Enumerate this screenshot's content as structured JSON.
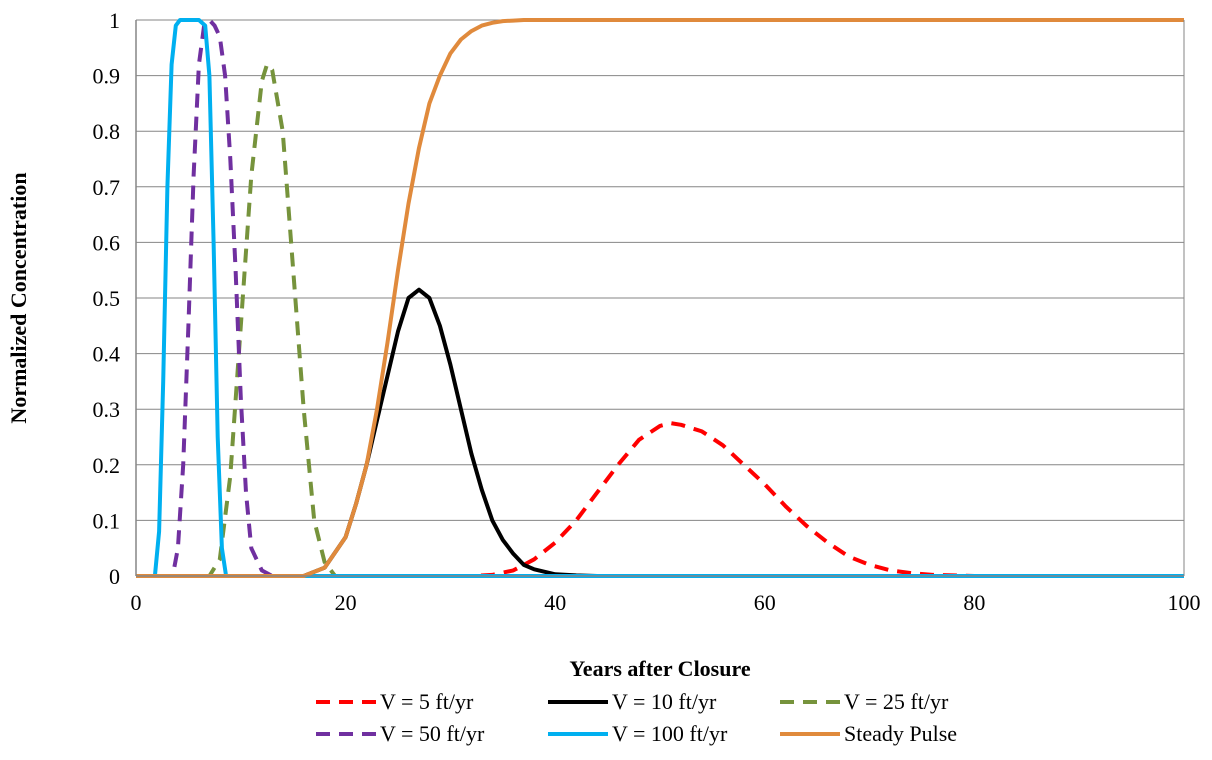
{
  "chart_data": {
    "type": "line",
    "title": "",
    "xlabel": "Years after Closure",
    "ylabel": "Normalized Concentration",
    "xlim": [
      0,
      100
    ],
    "ylim": [
      0,
      1
    ],
    "xticks": [
      0,
      20,
      40,
      60,
      80,
      100
    ],
    "xtick_labels": [
      "0",
      "20",
      "40",
      "60",
      "80",
      "100"
    ],
    "yticks": [
      0,
      0.1,
      0.2,
      0.3,
      0.4,
      0.5,
      0.6,
      0.7,
      0.8,
      0.9,
      1
    ],
    "ytick_labels": [
      "0",
      "0.1",
      "0.2",
      "0.3",
      "0.4",
      "0.5",
      "0.6",
      "0.7",
      "0.8",
      "0.9",
      "1"
    ],
    "grid": "horizontal",
    "legend_position": "bottom",
    "series": [
      {
        "name": "V = 5 ft/yr",
        "color": "#ff0000",
        "dash": true,
        "x": [
          0,
          32,
          34,
          36,
          38,
          40,
          42,
          44,
          46,
          48,
          50,
          51,
          52,
          54,
          56,
          58,
          60,
          62,
          64,
          66,
          68,
          70,
          72,
          74,
          76,
          78,
          80,
          100
        ],
        "y": [
          0,
          0,
          0.002,
          0.01,
          0.03,
          0.06,
          0.1,
          0.15,
          0.2,
          0.245,
          0.27,
          0.275,
          0.272,
          0.26,
          0.235,
          0.2,
          0.165,
          0.125,
          0.09,
          0.06,
          0.035,
          0.02,
          0.01,
          0.005,
          0.002,
          0.001,
          0,
          0
        ]
      },
      {
        "name": "V = 10 ft/yr",
        "color": "#000000",
        "dash": false,
        "x": [
          0,
          16,
          18,
          20,
          21,
          22,
          23,
          24,
          25,
          26,
          27,
          28,
          29,
          30,
          31,
          32,
          33,
          34,
          35,
          36,
          37,
          38,
          40,
          42,
          44,
          100
        ],
        "y": [
          0,
          0,
          0.015,
          0.07,
          0.13,
          0.2,
          0.28,
          0.36,
          0.44,
          0.5,
          0.515,
          0.5,
          0.45,
          0.38,
          0.3,
          0.22,
          0.155,
          0.1,
          0.065,
          0.04,
          0.02,
          0.012,
          0.003,
          0.001,
          0,
          0
        ]
      },
      {
        "name": "V = 25 ft/yr",
        "color": "#76933c",
        "dash": true,
        "x": [
          0,
          7,
          8,
          9,
          10,
          11,
          12,
          12.5,
          13,
          14,
          15,
          16,
          17,
          18,
          19,
          100
        ],
        "y": [
          0,
          0,
          0.03,
          0.18,
          0.45,
          0.72,
          0.89,
          0.92,
          0.91,
          0.8,
          0.55,
          0.3,
          0.1,
          0.025,
          0,
          0
        ]
      },
      {
        "name": "V = 50 ft/yr",
        "color": "#7030a0",
        "dash": true,
        "x": [
          0,
          3.5,
          4,
          4.5,
          5,
          5.5,
          6,
          6.5,
          7,
          7.5,
          8,
          8.5,
          9,
          9.5,
          10,
          10.5,
          11,
          12,
          13,
          100
        ],
        "y": [
          0,
          0,
          0.05,
          0.2,
          0.45,
          0.72,
          0.92,
          0.99,
          1.0,
          0.99,
          0.97,
          0.9,
          0.75,
          0.55,
          0.32,
          0.15,
          0.05,
          0.01,
          0,
          0
        ]
      },
      {
        "name": "V = 100 ft/yr",
        "color": "#00b0f0",
        "dash": false,
        "x": [
          0,
          1.8,
          2.2,
          2.6,
          3.0,
          3.4,
          3.8,
          4.2,
          6.0,
          6.6,
          7.0,
          7.4,
          7.8,
          8.2,
          8.6,
          100
        ],
        "y": [
          0,
          0,
          0.08,
          0.35,
          0.7,
          0.92,
          0.99,
          1.0,
          1.0,
          0.99,
          0.9,
          0.6,
          0.25,
          0.05,
          0,
          0
        ]
      },
      {
        "name": "Steady Pulse",
        "color": "#e08a3c",
        "dash": false,
        "x": [
          0,
          16,
          18,
          20,
          21,
          22,
          23,
          24,
          25,
          26,
          27,
          28,
          29,
          30,
          31,
          32,
          33,
          34,
          35,
          36,
          37,
          38,
          40,
          42,
          44,
          100
        ],
        "y": [
          0,
          0,
          0.015,
          0.07,
          0.13,
          0.2,
          0.3,
          0.42,
          0.55,
          0.67,
          0.77,
          0.85,
          0.9,
          0.94,
          0.965,
          0.98,
          0.99,
          0.995,
          0.998,
          0.999,
          1.0,
          1.0,
          1.0,
          1.0,
          1.0,
          1.0
        ]
      }
    ]
  }
}
